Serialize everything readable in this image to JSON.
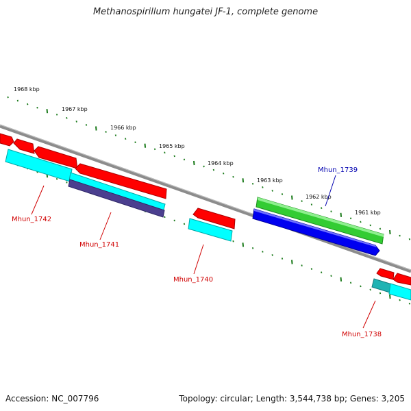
{
  "title": "Methanospirillum hungatei JF-1, complete genome",
  "footer": {
    "accession": "Accession: NC_007796",
    "topology": "Topology: circular; Length: 3,544,738 bp; Genes: 3,205"
  },
  "colors": {
    "backbone": "#8c8c8c",
    "cds": "#ff0000",
    "rna": "#00ffff",
    "gene_forward": "#33cc33",
    "gene_forward_highlight": "#0000ff",
    "tick": "#1a7a1a",
    "label_red": "#d00000",
    "label_blue": "#0000b0",
    "dark_bar": "#4b3f8f"
  },
  "scale_labels": [
    "1968 kbp",
    "1967 kbp",
    "1966 kbp",
    "1965 kbp",
    "1964 kbp",
    "1963 kbp",
    "1962 kbp",
    "1961 kbp"
  ],
  "gene_labels": [
    {
      "text": "Mhun_1742",
      "color": "red"
    },
    {
      "text": "Mhun_1741",
      "color": "red"
    },
    {
      "text": "Mhun_1740",
      "color": "red"
    },
    {
      "text": "Mhun_1739",
      "color": "blue"
    },
    {
      "text": "Mhun_1738",
      "color": "red"
    }
  ]
}
